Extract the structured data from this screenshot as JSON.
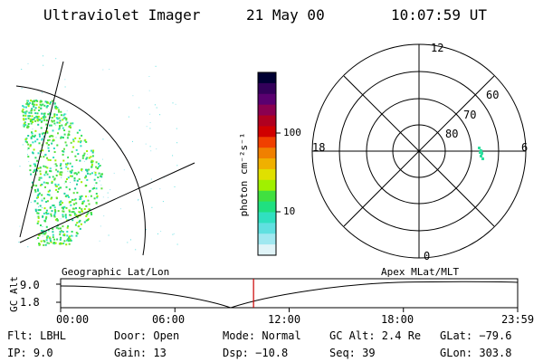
{
  "header": {
    "title": "Ultraviolet Imager",
    "date": "21 May 00",
    "time": "10:07:59 UT"
  },
  "colorbar": {
    "unit_label": "photon cm⁻²s⁻¹",
    "ticks": [
      "100",
      "10"
    ],
    "scale": "log",
    "colors": [
      "#000033",
      "#33005a",
      "#5a0070",
      "#8a0050",
      "#b00020",
      "#d00000",
      "#f04000",
      "#f08000",
      "#f0b000",
      "#e0e000",
      "#a0f000",
      "#40e040",
      "#20e080",
      "#30e0c0",
      "#60e0e0",
      "#a0e8f0",
      "#e0f4f8"
    ]
  },
  "polar_plot": {
    "lat_labels": [
      "60",
      "70",
      "80"
    ],
    "mlt_labels": {
      "top": "12",
      "bottom": "0",
      "left": "18",
      "right": "6"
    }
  },
  "timeline": {
    "left_label": "Geographic Lat/Lon",
    "right_label": "Apex MLat/MLT",
    "ylabel": "GC Alt",
    "y_ticks": [
      "9.0",
      "1.8"
    ],
    "x_ticks": [
      "00:00",
      "06:00",
      "12:00",
      "18:00",
      "23:59"
    ],
    "current_time_hours": 10.13,
    "marker_color": "#cc0000"
  },
  "status": {
    "filter": "Flt: LBHL",
    "ip": "IP: 9.0",
    "door": "Door: Open",
    "gain": "Gain: 13",
    "mode": "Mode: Normal",
    "dsp": "Dsp: −10.8",
    "gc_alt": "GC Alt: 2.4 Re",
    "seq": "Seq: 39",
    "glat": "GLat: −79.6",
    "glon": "GLon: 303.8"
  }
}
